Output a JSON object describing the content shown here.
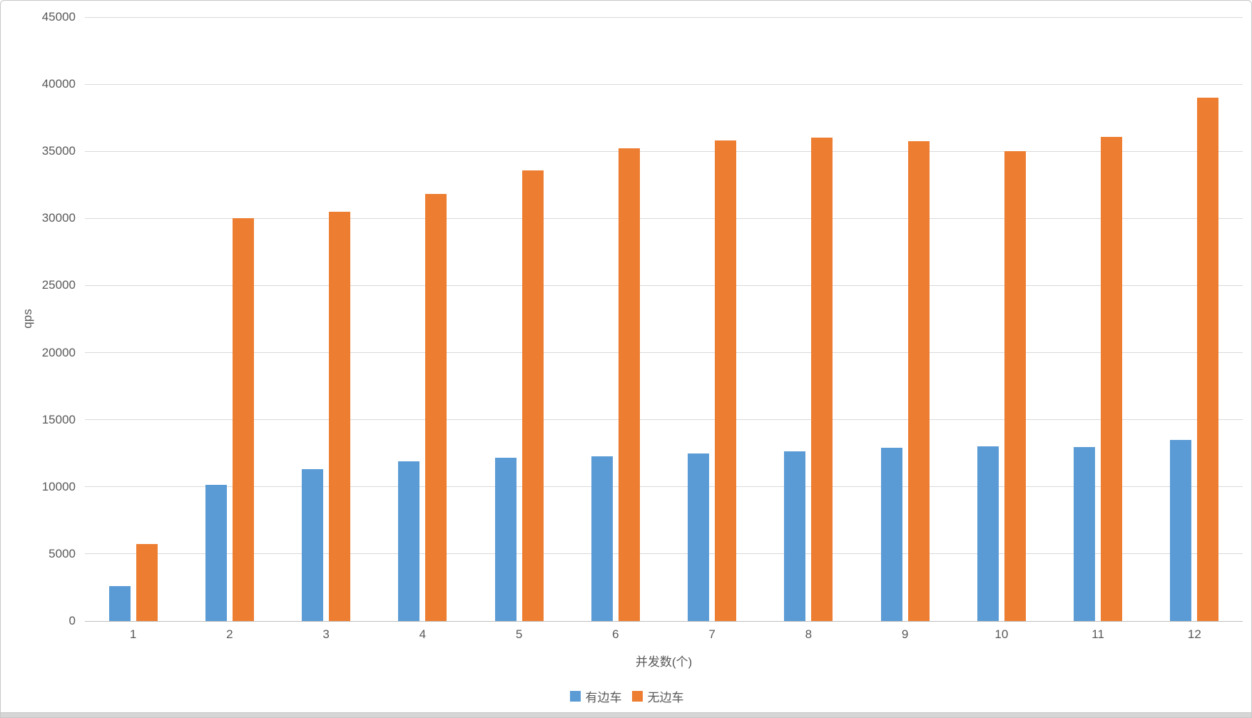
{
  "chart_data": {
    "type": "bar",
    "title": "",
    "xlabel": "并发数(个)",
    "ylabel": "qps",
    "categories": [
      "1",
      "2",
      "3",
      "4",
      "5",
      "6",
      "7",
      "8",
      "9",
      "10",
      "11",
      "12"
    ],
    "series": [
      {
        "name": "有边车",
        "slug": "with-sidecar",
        "color": "#5B9BD5",
        "values": [
          2600,
          10150,
          11300,
          11900,
          12150,
          12300,
          12500,
          12650,
          12900,
          13000,
          12950,
          13500
        ]
      },
      {
        "name": "无边车",
        "slug": "without-sidecar",
        "color": "#ED7D31",
        "values": [
          5750,
          30000,
          30500,
          31850,
          33600,
          35200,
          35800,
          36000,
          35750,
          35000,
          36100,
          39000
        ]
      }
    ],
    "ylim": [
      0,
      45000
    ],
    "yticks": [
      0,
      5000,
      10000,
      15000,
      20000,
      25000,
      30000,
      35000,
      40000,
      45000
    ],
    "grid": "horizontal",
    "legend_position": "bottom-center"
  },
  "colors": {
    "gridline": "#D9D9D9",
    "axis_line": "#BFBFBF",
    "text": "#595959",
    "background": "#FFFFFF",
    "card_border": "#C8C8C8"
  }
}
